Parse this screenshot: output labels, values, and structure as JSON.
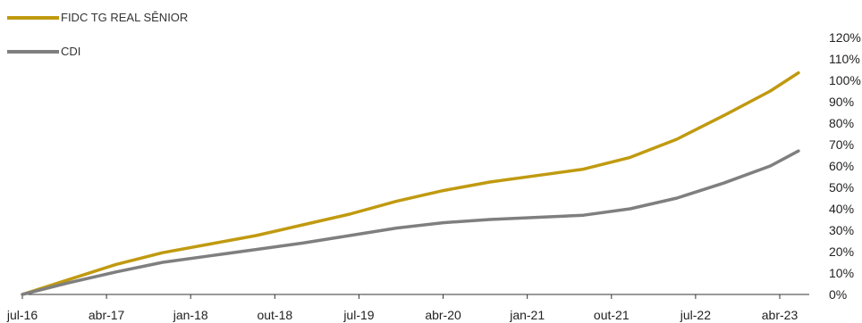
{
  "chart_data": {
    "type": "line",
    "title": "",
    "xlabel": "",
    "ylabel": "",
    "x_ticks": [
      "jul-16",
      "abr-17",
      "jan-18",
      "out-18",
      "jul-19",
      "abr-20",
      "jan-21",
      "out-21",
      "jul-22",
      "abr-23"
    ],
    "y_ticks": [
      "0%",
      "10%",
      "20%",
      "30%",
      "40%",
      "50%",
      "60%",
      "70%",
      "80%",
      "90%",
      "100%",
      "110%",
      "120%"
    ],
    "ylim": [
      0,
      120
    ],
    "y_axis_side": "right",
    "grid": false,
    "legend_position": "top-left",
    "series": [
      {
        "name": "FIDC TG REAL SÊNIOR",
        "color": "#C09A10",
        "values": [
          0,
          7,
          14,
          19.5,
          23.5,
          27.5,
          32.5,
          37.5,
          43.5,
          48.5,
          52.5,
          55.5,
          58.5,
          64,
          72.5,
          83.5,
          95,
          103.5
        ]
      },
      {
        "name": "CDI",
        "color": "#7F7F7F",
        "values": [
          0,
          5.5,
          10.5,
          15,
          18,
          21,
          24,
          27.5,
          31,
          33.5,
          35,
          36,
          37,
          40,
          45,
          52,
          60,
          67
        ]
      }
    ],
    "x_values": [
      "jul-16",
      "dez-16",
      "mai-17",
      "out-17",
      "mar-18",
      "ago-18",
      "jan-19",
      "jun-19",
      "nov-19",
      "abr-20",
      "set-20",
      "fev-21",
      "jul-21",
      "dez-21",
      "mai-22",
      "out-22",
      "mar-23",
      "jun-23"
    ]
  }
}
